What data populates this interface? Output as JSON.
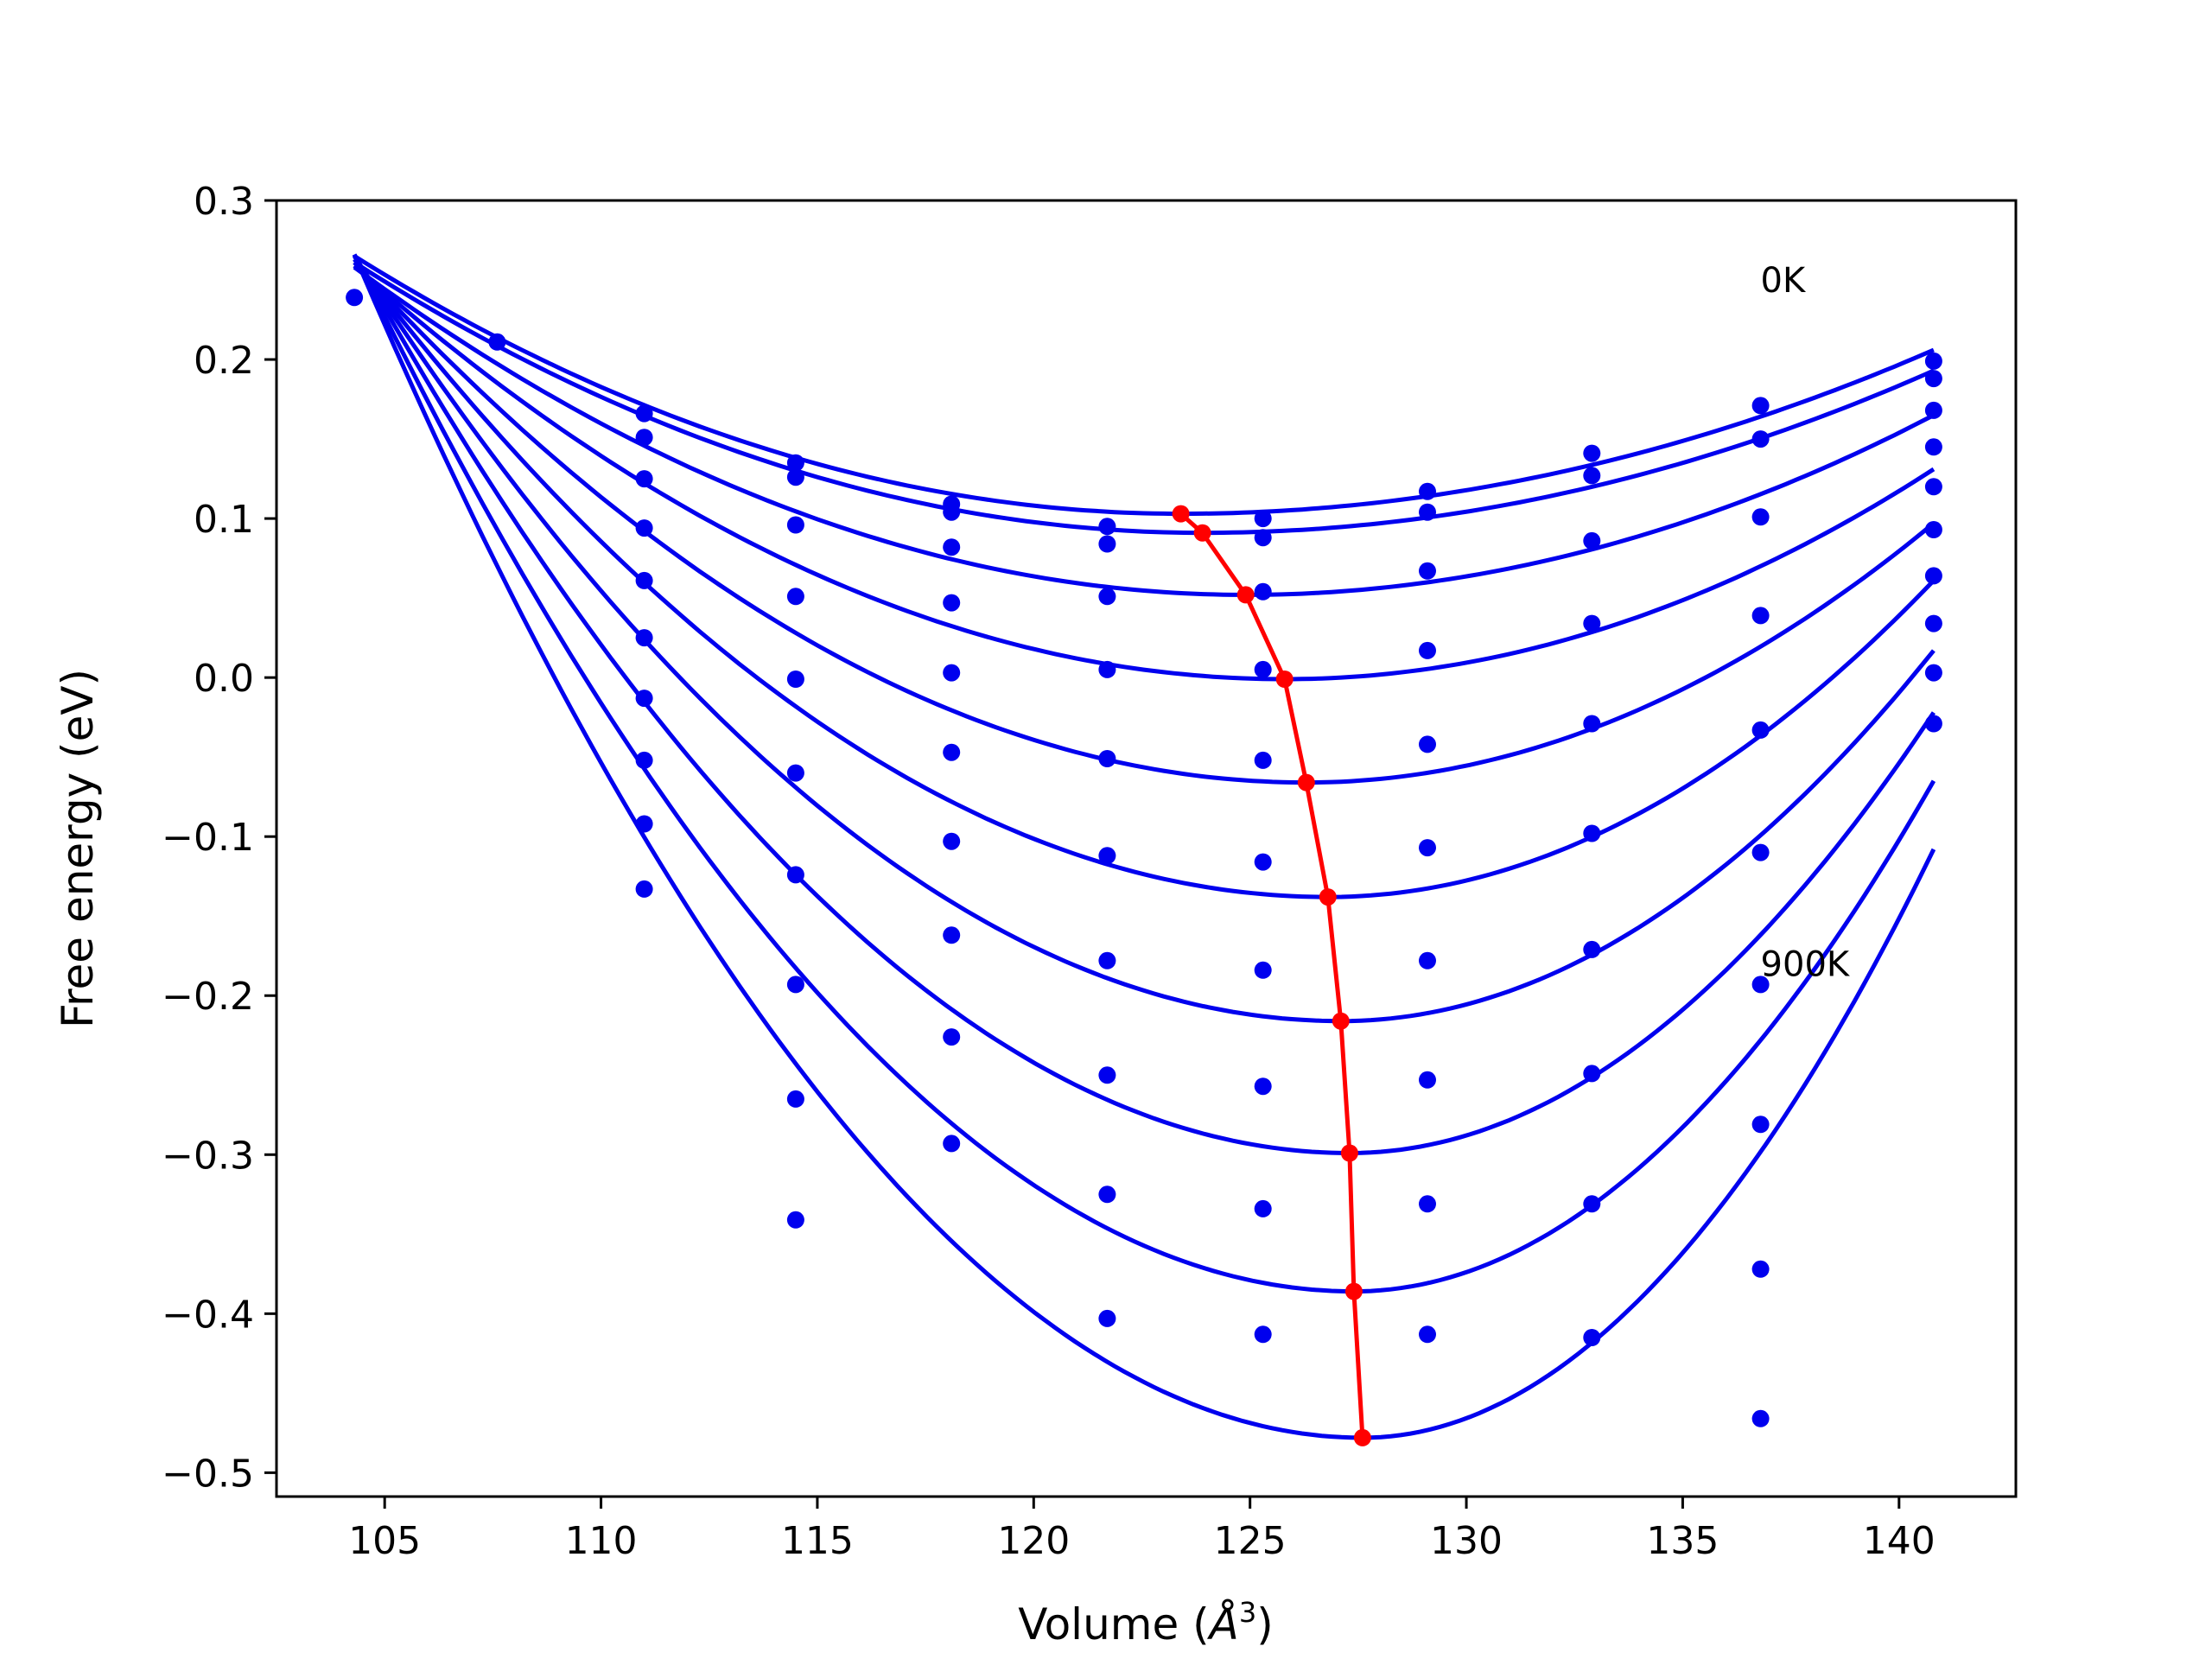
{
  "chart_data": {
    "type": "line",
    "title": "",
    "xlabel_main": "Volume (",
    "xlabel_sym": "Å",
    "xlabel_sup": "3",
    "xlabel_end": ")",
    "ylabel": "Free energy (eV)",
    "xlim": [
      102.5,
      142.7
    ],
    "ylim": [
      -0.515,
      0.3
    ],
    "xticks": [
      105,
      110,
      115,
      120,
      125,
      130,
      135,
      140
    ],
    "xtick_labels": [
      "105",
      "110",
      "115",
      "120",
      "125",
      "130",
      "135",
      "140"
    ],
    "yticks": [
      0.3,
      0.2,
      0.1,
      0.0,
      -0.1,
      -0.2,
      -0.3,
      -0.4,
      -0.5
    ],
    "ytick_labels": [
      "0.3",
      "0.2",
      "0.1",
      "0.0",
      "−0.1",
      "−0.2",
      "−0.3",
      "−0.4",
      "−0.5"
    ],
    "grid": false,
    "annotations": [
      {
        "text": "0K",
        "x": 136.8,
        "y": 0.25
      },
      {
        "text": "900K",
        "x": 136.8,
        "y": -0.18
      }
    ],
    "colors": {
      "curves": "#0000ee",
      "points": "#0000ee",
      "minima": "#ff0000",
      "axes": "#000000"
    },
    "curve_x_range": [
      104.3,
      140.8
    ],
    "series": [
      {
        "min_x": 123.4,
        "min_y": 0.103,
        "y_left": 0.265,
        "y_right": 0.206
      },
      {
        "min_x": 123.9,
        "min_y": 0.091,
        "y_left": 0.261,
        "y_right": 0.193
      },
      {
        "min_x": 124.9,
        "min_y": 0.052,
        "y_left": 0.258,
        "y_right": 0.165
      },
      {
        "min_x": 125.8,
        "min_y": -0.001,
        "y_left": 0.259,
        "y_right": 0.131
      },
      {
        "min_x": 126.3,
        "min_y": -0.066,
        "y_left": 0.261,
        "y_right": 0.097
      },
      {
        "min_x": 126.8,
        "min_y": -0.138,
        "y_left": 0.263,
        "y_right": 0.061
      },
      {
        "min_x": 127.1,
        "min_y": -0.216,
        "y_left": 0.265,
        "y_right": 0.017
      },
      {
        "min_x": 127.3,
        "min_y": -0.299,
        "y_left": 0.266,
        "y_right": -0.022
      },
      {
        "min_x": 127.4,
        "min_y": -0.386,
        "y_left": 0.266,
        "y_right": -0.065
      },
      {
        "min_x": 127.6,
        "min_y": -0.478,
        "y_left": 0.266,
        "y_right": -0.108
      }
    ],
    "minima_line": {
      "x": [
        123.4,
        123.9,
        124.9,
        125.8,
        126.3,
        126.8,
        127.1,
        127.3,
        127.4,
        127.6
      ],
      "y": [
        0.103,
        0.091,
        0.052,
        -0.001,
        -0.066,
        -0.138,
        -0.216,
        -0.299,
        -0.386,
        -0.478
      ]
    },
    "points": [
      {
        "x": 104.3,
        "y": 0.239
      },
      {
        "x": 107.6,
        "y": 0.211
      },
      {
        "x": 111.0,
        "y": 0.166
      },
      {
        "x": 111.0,
        "y": 0.151
      },
      {
        "x": 111.0,
        "y": 0.125
      },
      {
        "x": 111.0,
        "y": 0.094
      },
      {
        "x": 111.0,
        "y": 0.061
      },
      {
        "x": 111.0,
        "y": 0.025
      },
      {
        "x": 111.0,
        "y": -0.013
      },
      {
        "x": 111.0,
        "y": -0.052
      },
      {
        "x": 111.0,
        "y": -0.092
      },
      {
        "x": 111.0,
        "y": -0.133
      },
      {
        "x": 114.5,
        "y": 0.135
      },
      {
        "x": 114.5,
        "y": 0.126
      },
      {
        "x": 114.5,
        "y": 0.096
      },
      {
        "x": 114.5,
        "y": 0.051
      },
      {
        "x": 114.5,
        "y": -0.001
      },
      {
        "x": 114.5,
        "y": -0.06
      },
      {
        "x": 114.5,
        "y": -0.124
      },
      {
        "x": 114.5,
        "y": -0.193
      },
      {
        "x": 114.5,
        "y": -0.265
      },
      {
        "x": 114.5,
        "y": -0.341
      },
      {
        "x": 118.1,
        "y": 0.109
      },
      {
        "x": 118.1,
        "y": 0.104
      },
      {
        "x": 118.1,
        "y": 0.082
      },
      {
        "x": 118.1,
        "y": 0.047
      },
      {
        "x": 118.1,
        "y": 0.003
      },
      {
        "x": 118.1,
        "y": -0.047
      },
      {
        "x": 118.1,
        "y": -0.103
      },
      {
        "x": 118.1,
        "y": -0.162
      },
      {
        "x": 118.1,
        "y": -0.226
      },
      {
        "x": 118.1,
        "y": -0.293
      },
      {
        "x": 121.7,
        "y": 0.095
      },
      {
        "x": 121.7,
        "y": 0.084
      },
      {
        "x": 121.7,
        "y": 0.051
      },
      {
        "x": 121.7,
        "y": 0.005
      },
      {
        "x": 121.7,
        "y": -0.051
      },
      {
        "x": 121.7,
        "y": -0.112
      },
      {
        "x": 121.7,
        "y": -0.178
      },
      {
        "x": 121.7,
        "y": -0.25
      },
      {
        "x": 121.7,
        "y": -0.325
      },
      {
        "x": 121.7,
        "y": -0.403
      },
      {
        "x": 125.3,
        "y": 0.1
      },
      {
        "x": 125.3,
        "y": 0.088
      },
      {
        "x": 125.3,
        "y": 0.054
      },
      {
        "x": 125.3,
        "y": 0.005
      },
      {
        "x": 125.3,
        "y": -0.052
      },
      {
        "x": 125.3,
        "y": -0.116
      },
      {
        "x": 125.3,
        "y": -0.184
      },
      {
        "x": 125.3,
        "y": -0.257
      },
      {
        "x": 125.3,
        "y": -0.334
      },
      {
        "x": 125.3,
        "y": -0.413
      },
      {
        "x": 129.1,
        "y": 0.117
      },
      {
        "x": 129.1,
        "y": 0.104
      },
      {
        "x": 129.1,
        "y": 0.067
      },
      {
        "x": 129.1,
        "y": 0.017
      },
      {
        "x": 129.1,
        "y": -0.042
      },
      {
        "x": 129.1,
        "y": -0.107
      },
      {
        "x": 129.1,
        "y": -0.178
      },
      {
        "x": 129.1,
        "y": -0.253
      },
      {
        "x": 129.1,
        "y": -0.331
      },
      {
        "x": 129.1,
        "y": -0.413
      },
      {
        "x": 132.9,
        "y": 0.141
      },
      {
        "x": 132.9,
        "y": 0.127
      },
      {
        "x": 132.9,
        "y": 0.086
      },
      {
        "x": 132.9,
        "y": 0.034
      },
      {
        "x": 132.9,
        "y": -0.029
      },
      {
        "x": 132.9,
        "y": -0.098
      },
      {
        "x": 132.9,
        "y": -0.171
      },
      {
        "x": 132.9,
        "y": -0.249
      },
      {
        "x": 132.9,
        "y": -0.331
      },
      {
        "x": 132.9,
        "y": -0.415
      },
      {
        "x": 136.8,
        "y": 0.171
      },
      {
        "x": 136.8,
        "y": 0.15
      },
      {
        "x": 136.8,
        "y": 0.101
      },
      {
        "x": 136.8,
        "y": 0.039
      },
      {
        "x": 136.8,
        "y": -0.033
      },
      {
        "x": 136.8,
        "y": -0.11
      },
      {
        "x": 136.8,
        "y": -0.193
      },
      {
        "x": 136.8,
        "y": -0.281
      },
      {
        "x": 136.8,
        "y": -0.372
      },
      {
        "x": 136.8,
        "y": -0.466
      },
      {
        "x": 140.8,
        "y": 0.199
      },
      {
        "x": 140.8,
        "y": 0.188
      },
      {
        "x": 140.8,
        "y": 0.168
      },
      {
        "x": 140.8,
        "y": 0.145
      },
      {
        "x": 140.8,
        "y": 0.12
      },
      {
        "x": 140.8,
        "y": 0.093
      },
      {
        "x": 140.8,
        "y": 0.064
      },
      {
        "x": 140.8,
        "y": 0.034
      },
      {
        "x": 140.8,
        "y": 0.003
      },
      {
        "x": 140.8,
        "y": -0.029
      }
    ]
  }
}
